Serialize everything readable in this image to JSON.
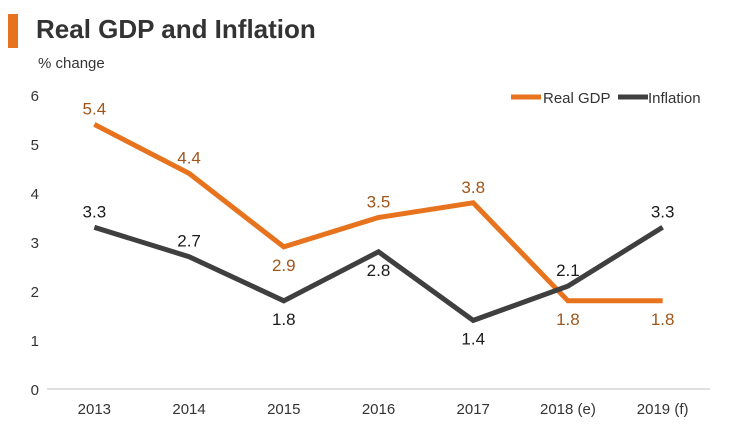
{
  "colors": {
    "accent": "#e8731e",
    "real_gdp": "#e8731e",
    "inflation": "#3f3f3f",
    "gdp_label": "#a0561a",
    "inflation_label": "#1a1a1a"
  },
  "chart_data": {
    "type": "line",
    "title": "Real GDP and Inflation",
    "ylabel": "% change",
    "xlabel": "",
    "categories": [
      "2013",
      "2014",
      "2015",
      "2016",
      "2017",
      "2018 (e)",
      "2019 (f)"
    ],
    "yticks": [
      "0",
      "1",
      "2",
      "3",
      "4",
      "5",
      "6"
    ],
    "ylim": [
      0,
      6
    ],
    "legend_position": "top-right",
    "series": [
      {
        "name": "Real GDP",
        "values": [
          5.4,
          4.4,
          2.9,
          3.5,
          3.8,
          1.8,
          1.8
        ],
        "labels": [
          "5.4",
          "4.4",
          "2.9",
          "3.5",
          "3.8",
          "1.8",
          "1.8"
        ]
      },
      {
        "name": "Inflation",
        "values": [
          3.3,
          2.7,
          1.8,
          2.8,
          1.4,
          2.1,
          3.3
        ],
        "labels": [
          "3.3",
          "2.7",
          "1.8",
          "2.8",
          "1.4",
          "2.1",
          "3.3"
        ]
      }
    ]
  }
}
